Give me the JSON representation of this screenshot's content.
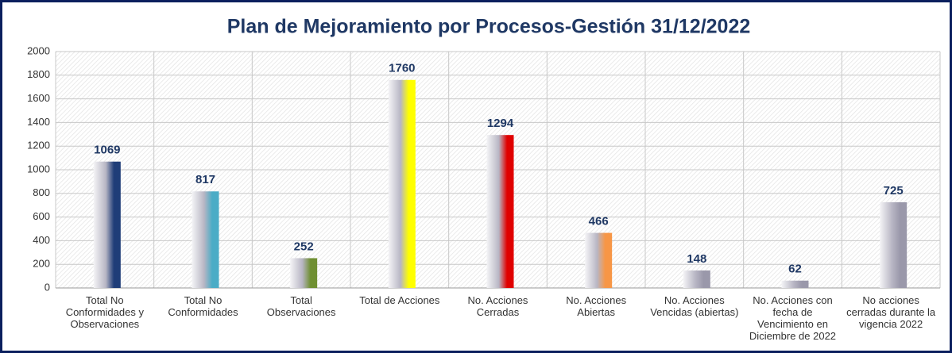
{
  "chart_data": {
    "type": "bar",
    "title": "Plan de Mejoramiento por Procesos-Gestión 31/12/2022",
    "categories": [
      "Total No Conformidades y Observaciones",
      "Total No Conformidades",
      "Total Observaciones",
      "Total de Acciones",
      "No. Acciones Cerradas",
      "No. Acciones Abiertas",
      "No. Acciones Vencidas (abiertas)",
      "No. Acciones con fecha de Vencimiento en Diciembre de 2022",
      "No acciones cerradas durante la vigencia 2022"
    ],
    "values": [
      1069,
      817,
      252,
      1760,
      1294,
      466,
      148,
      62,
      725
    ],
    "colors": [
      "#1f3d78",
      "#4bacc6",
      "#6f8f32",
      "#ffff00",
      "#e00000",
      "#f79646",
      "#9a98aa",
      "#9a98aa",
      "#9a98aa"
    ],
    "ylim": [
      0,
      2000
    ],
    "yticks": [
      0,
      200,
      400,
      600,
      800,
      1000,
      1200,
      1400,
      1600,
      1800,
      2000
    ],
    "grid": true
  }
}
